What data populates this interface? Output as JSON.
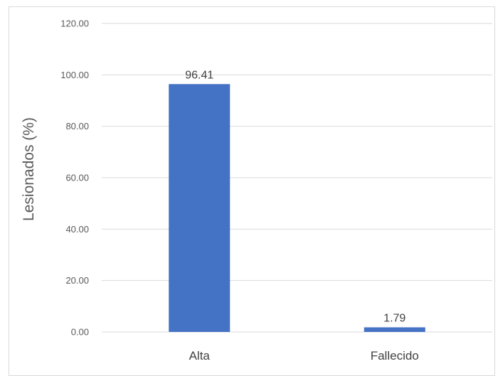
{
  "chart_data": {
    "type": "bar",
    "categories": [
      "Alta",
      "Fallecido"
    ],
    "values": [
      96.41,
      1.79
    ],
    "data_labels": [
      "96.41",
      "1.79"
    ],
    "title": "",
    "xlabel": "",
    "ylabel": "Lesionados (%)",
    "ylim": [
      0,
      120
    ],
    "yticks": [
      "0.00",
      "20.00",
      "40.00",
      "60.00",
      "80.00",
      "100.00",
      "120.00"
    ],
    "grid": true,
    "legend": "none",
    "bar_color": "#4472c4",
    "grid_color": "#d9d9d9"
  }
}
